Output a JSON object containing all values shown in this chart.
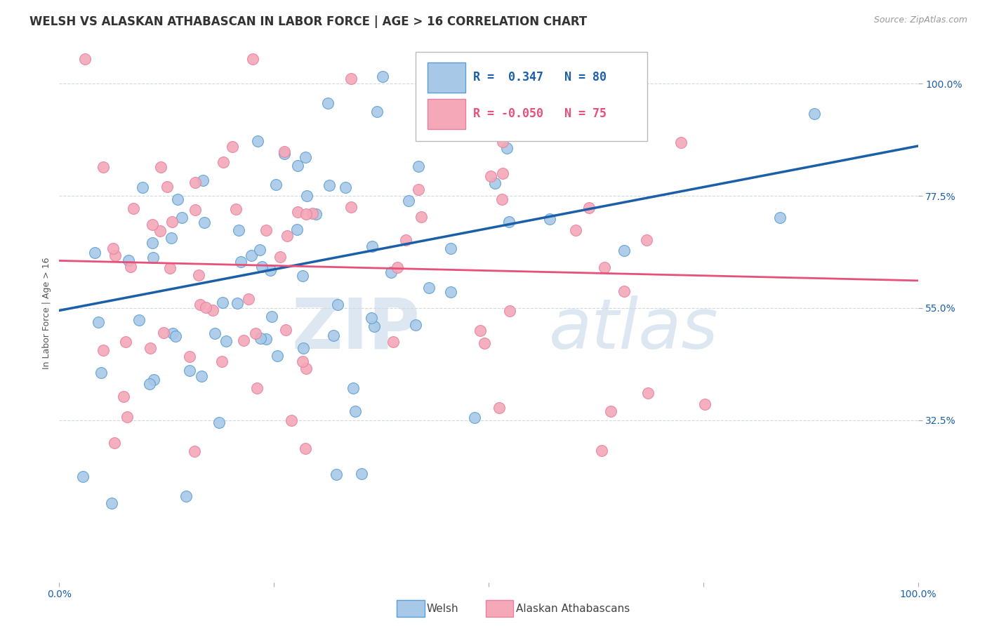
{
  "title": "WELSH VS ALASKAN ATHABASCAN IN LABOR FORCE | AGE > 16 CORRELATION CHART",
  "source": "Source: ZipAtlas.com",
  "ylabel": "In Labor Force | Age > 16",
  "legend_welsh_r": "R =  0.347",
  "legend_welsh_n": "N = 80",
  "legend_alaskan_r": "R = -0.050",
  "legend_alaskan_n": "N = 75",
  "welsh_color": "#a8c8e8",
  "alaskan_color": "#f4a8b8",
  "welsh_line_color": "#1a5fa8",
  "alaskan_line_color": "#e8507a",
  "welsh_edge_color": "#5a9fd4",
  "alaskan_edge_color": "#e880a0",
  "watermark_zip": "ZIP",
  "watermark_atlas": "atlas",
  "background_color": "#ffffff",
  "welsh_R": 0.347,
  "welsh_N": 80,
  "alaskan_R": -0.05,
  "alaskan_N": 75,
  "xlim": [
    0.0,
    1.0
  ],
  "ylim": [
    0.0,
    1.08
  ],
  "ytick_values": [
    0.325,
    0.55,
    0.775,
    1.0
  ],
  "ytick_labels": [
    "32.5%",
    "55.0%",
    "77.5%",
    "100.0%"
  ],
  "xtick_values": [
    0.0,
    0.25,
    0.5,
    0.75,
    1.0
  ],
  "xtick_labels": [
    "0.0%",
    "",
    "",
    "",
    "100.0%"
  ],
  "grid_color": "#d0d8e0",
  "title_fontsize": 12,
  "axis_label_fontsize": 9,
  "tick_fontsize": 10,
  "source_fontsize": 9,
  "welsh_line_start_y": 0.545,
  "welsh_line_end_y": 0.875,
  "alaskan_line_start_y": 0.645,
  "alaskan_line_end_y": 0.605
}
